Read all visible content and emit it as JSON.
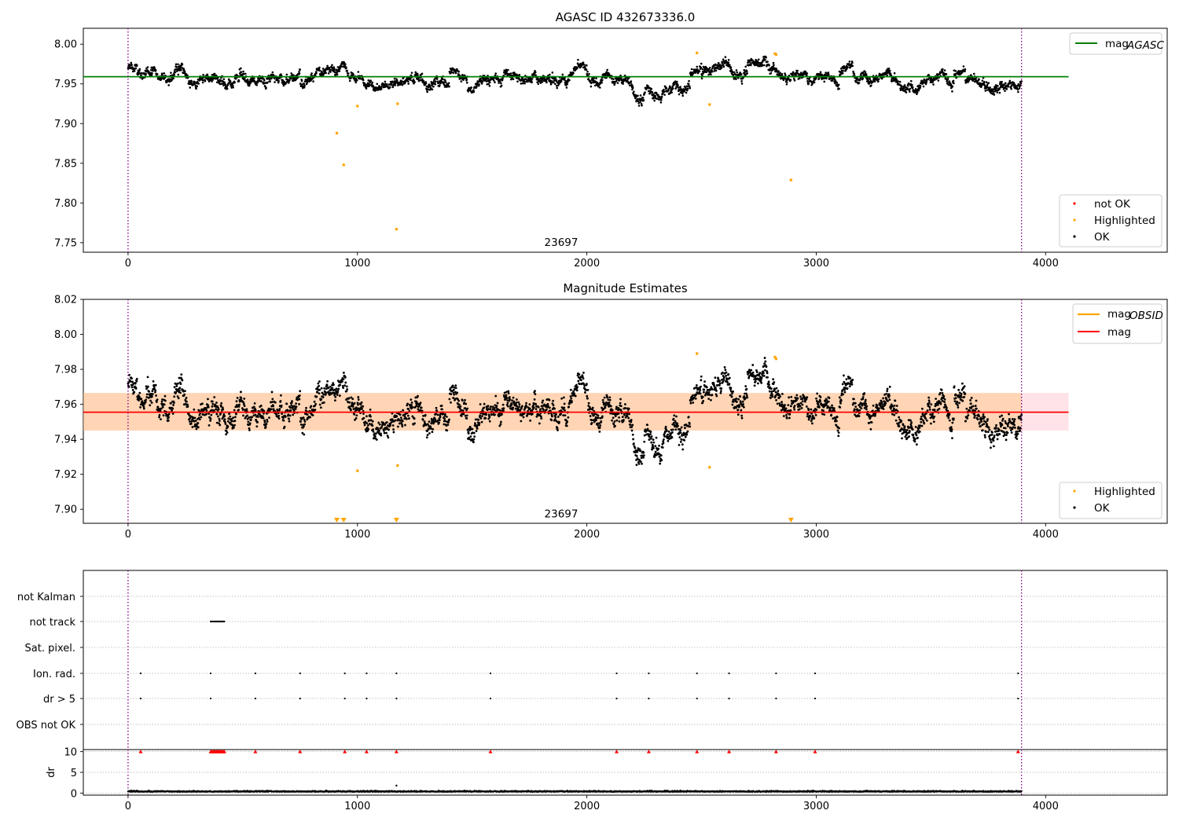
{
  "chart_data": [
    {
      "type": "scatter",
      "title": "AGASC ID 432673336.0",
      "xlim": [
        -195,
        4530
      ],
      "ylim": [
        7.738,
        8.02
      ],
      "x_ticks": [
        0,
        1000,
        2000,
        3000,
        4000
      ],
      "y_ticks": [
        "7.75",
        "7.80",
        "7.85",
        "7.90",
        "7.95",
        "8.00"
      ],
      "y_tick_values": [
        7.75,
        7.8,
        7.85,
        7.9,
        7.95,
        8.0
      ],
      "vlines": [
        0,
        3895
      ],
      "hline": {
        "name": "mag_AGASC",
        "value": 7.959,
        "x_range": [
          -195,
          4100
        ],
        "color": "#008000"
      },
      "annotation": {
        "text": "23697",
        "x": 1950,
        "y": 7.742
      },
      "legends": [
        {
          "position": "top-right",
          "entries": [
            {
              "label": "mag",
              "sub": "AGASC",
              "kind": "line",
              "color": "#008000"
            }
          ]
        },
        {
          "position": "bottom-right",
          "entries": [
            {
              "label": "not OK",
              "kind": "dot",
              "color": "#ff0000"
            },
            {
              "label": "Highlighted",
              "kind": "dot",
              "color": "#ffa500"
            },
            {
              "label": "OK",
              "kind": "dot",
              "color": "#000000"
            }
          ]
        }
      ],
      "highlighted_points": [
        [
          2480,
          7.989
        ],
        [
          2820,
          7.988
        ],
        [
          2825,
          7.987
        ],
        [
          1000,
          7.922
        ],
        [
          1175,
          7.925
        ],
        [
          2535,
          7.924
        ],
        [
          910,
          7.888
        ],
        [
          940,
          7.848
        ],
        [
          2890,
          7.829
        ],
        [
          1170,
          7.767
        ]
      ],
      "ok_series_center": 7.958,
      "ok_series_count": 2900,
      "ok_series_x_range": [
        0,
        3895
      ]
    },
    {
      "type": "scatter",
      "title": "Magnitude Estimates",
      "xlim": [
        -195,
        4530
      ],
      "ylim": [
        7.892,
        8.02
      ],
      "x_ticks": [
        0,
        1000,
        2000,
        3000,
        4000
      ],
      "y_ticks": [
        "7.90",
        "7.92",
        "7.94",
        "7.96",
        "7.98",
        "8.00",
        "8.02"
      ],
      "y_tick_values": [
        7.9,
        7.92,
        7.94,
        7.96,
        7.98,
        8.0,
        8.02
      ],
      "vlines": [
        0,
        3895
      ],
      "mag_line": {
        "name": "mag",
        "value": 7.9555,
        "x_range": [
          -195,
          4100
        ],
        "color": "#ff0000"
      },
      "mag_band": {
        "low": 7.945,
        "high": 7.9665,
        "x_range": [
          -195,
          4100
        ],
        "color": "#ffc0cb"
      },
      "obsid_band": {
        "low": 7.945,
        "high": 7.9665,
        "x_range": [
          -195,
          3895
        ],
        "color": "#ffa500"
      },
      "annotation": {
        "text": "23697",
        "x": 1950,
        "y": 7.8935
      },
      "legends": [
        {
          "position": "top-right",
          "entries": [
            {
              "label": "mag",
              "sub": "OBSID",
              "kind": "line",
              "color": "#ffa500"
            },
            {
              "label": "mag",
              "kind": "line",
              "color": "#ff0000"
            }
          ]
        },
        {
          "position": "bottom-right",
          "entries": [
            {
              "label": "Highlighted",
              "kind": "dot",
              "color": "#ffa500"
            },
            {
              "label": "OK",
              "kind": "dot",
              "color": "#000000"
            }
          ]
        }
      ],
      "highlighted_points": [
        [
          2480,
          7.989
        ],
        [
          2820,
          7.987
        ],
        [
          2825,
          7.986
        ],
        [
          1000,
          7.922
        ],
        [
          1175,
          7.925
        ],
        [
          2535,
          7.924
        ]
      ],
      "out_of_range_markers": [
        910,
        940,
        1170,
        2890
      ]
    },
    {
      "type": "scatter",
      "xlim": [
        -195,
        4530
      ],
      "x_ticks": [
        0,
        1000,
        2000,
        3000,
        4000
      ],
      "vlines": [
        0,
        3895
      ],
      "categories": [
        "not Kalman",
        "not track",
        "Sat. pixel.",
        "Ion. rad.",
        "dr > 5",
        "OBS not OK"
      ],
      "flag_points": {
        "not track": {
          "x_range": [
            360,
            420
          ]
        },
        "Ion. rad.": [
          55,
          360,
          555,
          750,
          945,
          1040,
          1170,
          1580,
          2130,
          2270,
          2480,
          2620,
          2825,
          2995,
          3880
        ],
        "dr > 5": [
          55,
          360,
          555,
          750,
          945,
          1040,
          1170,
          1580,
          2130,
          2270,
          2480,
          2620,
          2825,
          2995,
          3880
        ]
      },
      "dr_panel": {
        "ylabel": "dr",
        "y_ticks": [
          "0",
          "5",
          "10"
        ],
        "y_tick_values": [
          0,
          5,
          10
        ],
        "ylim": [
          -0.5,
          10.5
        ],
        "clipped_markers": [
          55,
          360,
          375,
          390,
          405,
          420,
          555,
          750,
          945,
          1040,
          1170,
          1580,
          2130,
          2270,
          2480,
          2620,
          2825,
          2995,
          3880
        ],
        "points": [
          [
            1170,
            1.8
          ]
        ],
        "baseline": 0.3
      }
    }
  ]
}
